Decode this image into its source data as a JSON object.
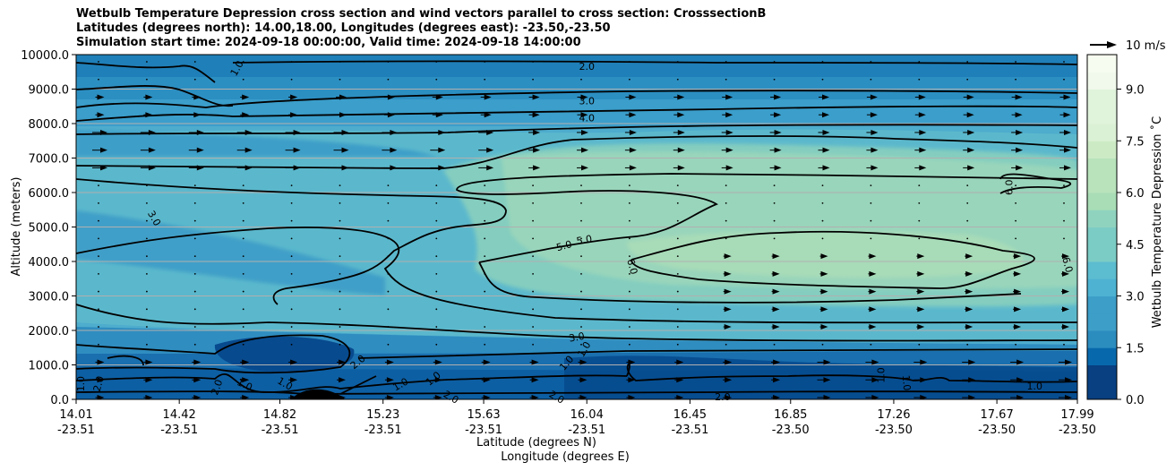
{
  "title_lines": [
    "Wetbulb Temperature Depression cross section and wind vectors parallel to cross section: CrosssectionB",
    "Latitudes (degrees north): 14.00,18.00, Longitudes (degrees east): -23.50,-23.50",
    "Simulation start time: 2024-09-18 00:00:00, Valid time: 2024-09-18 14:00:00"
  ],
  "colorbar": {
    "label": "Wetbulb Temperature Depression ˚C",
    "ticks": [
      "0.0",
      "1.5",
      "3.0",
      "4.5",
      "6.0",
      "7.5",
      "9.0"
    ],
    "range": [
      0,
      10
    ]
  },
  "wind_key": {
    "label": "10 m/s"
  },
  "chart_data": {
    "type": "contour",
    "variable": "Wetbulb Temperature Depression",
    "unit": "˚C",
    "xlabel_lat": "Latitude (degrees N)",
    "xlabel_lon": "Longitude (degrees E)",
    "ylabel": "Altitude (meters)",
    "ylim": [
      0,
      10000
    ],
    "xlim_lat": [
      14.01,
      17.99
    ],
    "x_ticks": [
      {
        "lat": "14.01",
        "lon": "-23.51"
      },
      {
        "lat": "14.42",
        "lon": "-23.51"
      },
      {
        "lat": "14.82",
        "lon": "-23.51"
      },
      {
        "lat": "15.23",
        "lon": "-23.51"
      },
      {
        "lat": "15.63",
        "lon": "-23.51"
      },
      {
        "lat": "16.04",
        "lon": "-23.51"
      },
      {
        "lat": "16.45",
        "lon": "-23.51"
      },
      {
        "lat": "16.85",
        "lon": "-23.50"
      },
      {
        "lat": "17.26",
        "lon": "-23.50"
      },
      {
        "lat": "17.67",
        "lon": "-23.50"
      },
      {
        "lat": "17.99",
        "lon": "-23.50"
      }
    ],
    "y_ticks": [
      "0.0",
      "1000.0",
      "2000.0",
      "3000.0",
      "4000.0",
      "5000.0",
      "6000.0",
      "7000.0",
      "8000.0",
      "9000.0",
      "10000.0"
    ],
    "grid": "horizontal",
    "contour_labels": [
      {
        "text": "1.0",
        "lat": 14.65,
        "alt": 9600,
        "rot": -60
      },
      {
        "text": "2.0",
        "lat": 16.04,
        "alt": 9650,
        "rot": 0
      },
      {
        "text": "3.0",
        "lat": 16.04,
        "alt": 8650,
        "rot": 0
      },
      {
        "text": "4.0",
        "lat": 16.04,
        "alt": 8150,
        "rot": 0
      },
      {
        "text": "3.0",
        "lat": 14.32,
        "alt": 5250,
        "rot": 60
      },
      {
        "text": "5.0",
        "lat": 15.95,
        "alt": 4450,
        "rot": -15
      },
      {
        "text": "5.0",
        "lat": 16.03,
        "alt": 4620,
        "rot": -10
      },
      {
        "text": "6.0",
        "lat": 16.22,
        "alt": 3850,
        "rot": 75
      },
      {
        "text": "6.0",
        "lat": 17.72,
        "alt": 6150,
        "rot": -90
      },
      {
        "text": "6.0",
        "lat": 17.95,
        "alt": 3900,
        "rot": 75
      },
      {
        "text": "3.0",
        "lat": 16.0,
        "alt": 1800,
        "rot": -10
      },
      {
        "text": "2.0",
        "lat": 15.13,
        "alt": 1080,
        "rot": -40
      },
      {
        "text": "1.0",
        "lat": 15.96,
        "alt": 1050,
        "rot": -50
      },
      {
        "text": "1.0",
        "lat": 16.03,
        "alt": 1450,
        "rot": -60
      },
      {
        "text": "1.0",
        "lat": 14.03,
        "alt": 450,
        "rot": -90
      },
      {
        "text": "2.0",
        "lat": 14.1,
        "alt": 450,
        "rot": -75
      },
      {
        "text": "2.0",
        "lat": 14.57,
        "alt": 350,
        "rot": -70
      },
      {
        "text": "1.0",
        "lat": 14.68,
        "alt": 420,
        "rot": 25
      },
      {
        "text": "1.0",
        "lat": 14.84,
        "alt": 450,
        "rot": 30
      },
      {
        "text": "1.0",
        "lat": 15.3,
        "alt": 430,
        "rot": -30
      },
      {
        "text": "1.0",
        "lat": 15.43,
        "alt": 600,
        "rot": -40
      },
      {
        "text": "2.0",
        "lat": 15.5,
        "alt": 60,
        "rot": 30
      },
      {
        "text": "2.0",
        "lat": 15.92,
        "alt": 60,
        "rot": 30
      },
      {
        "text": "2.0",
        "lat": 16.58,
        "alt": 60,
        "rot": 0
      },
      {
        "text": "1.0",
        "lat": 17.21,
        "alt": 700,
        "rot": -90
      },
      {
        "text": "1.0",
        "lat": 17.31,
        "alt": 480,
        "rot": 85
      },
      {
        "text": "1.0",
        "lat": 17.82,
        "alt": 380,
        "rot": 0
      }
    ]
  }
}
